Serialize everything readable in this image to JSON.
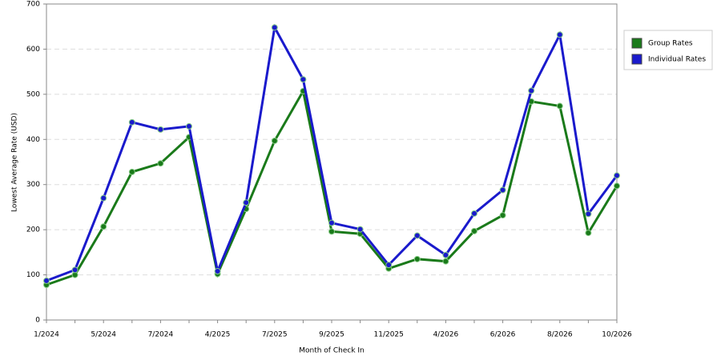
{
  "chart_data": {
    "type": "line",
    "x_label": "Month of Check In",
    "y_label": "Lowest Average Rate (USD)",
    "categories": [
      "1/2024",
      null,
      "5/2024",
      null,
      "7/2024",
      null,
      "4/2025",
      null,
      "7/2025",
      null,
      "9/2025",
      null,
      "11/2025",
      null,
      "4/2026",
      null,
      "6/2026",
      null,
      "8/2026",
      null,
      "10/2026"
    ],
    "series": [
      {
        "name": "Group Rates",
        "color": "#1a7a1a",
        "values": [
          78,
          100,
          207,
          328,
          347,
          405,
          102,
          246,
          397,
          507,
          196,
          191,
          114,
          135,
          130,
          197,
          232,
          484,
          474,
          193,
          297
        ]
      },
      {
        "name": "Individual Rates",
        "color": "#1a1acc",
        "values": [
          87,
          111,
          270,
          438,
          422,
          429,
          108,
          260,
          648,
          533,
          215,
          201,
          122,
          187,
          144,
          236,
          288,
          508,
          632,
          235,
          320
        ]
      }
    ],
    "ylim": [
      0,
      700
    ],
    "yticks": [
      0,
      100,
      200,
      300,
      400,
      500,
      600,
      700
    ],
    "grid": true,
    "legend": "right"
  }
}
